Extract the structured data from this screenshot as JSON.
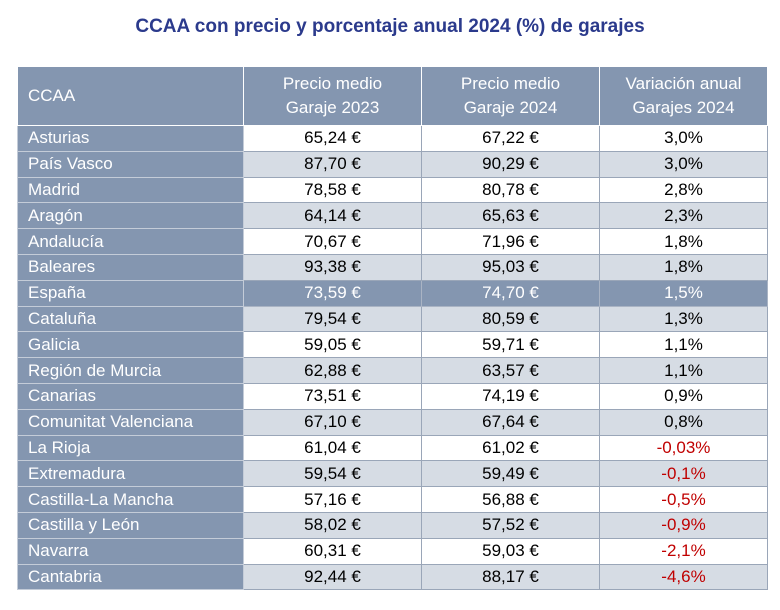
{
  "title": "CCAA con precio y porcentaje anual 2024 (%) de garajes",
  "header": {
    "col0": "CCAA",
    "col1_line1": "Precio medio",
    "col1_line2": "Garaje 2023",
    "col2_line1": "Precio medio",
    "col2_line2": "Garaje 2024",
    "col3_line1": "Variación anual",
    "col3_line2": "Garajes 2024"
  },
  "colors": {
    "header_bg": "#8496b0",
    "stripe_bg": "#d6dce4",
    "title": "#2b3a8c",
    "negative": "#c00000"
  },
  "rows": [
    {
      "ccaa": "Asturias",
      "p2023": "65,24 €",
      "p2024": "67,22 €",
      "var": "3,0%",
      "neg": false,
      "highlight": false
    },
    {
      "ccaa": "País Vasco",
      "p2023": "87,70 €",
      "p2024": "90,29 €",
      "var": "3,0%",
      "neg": false,
      "highlight": false
    },
    {
      "ccaa": "Madrid",
      "p2023": "78,58 €",
      "p2024": "80,78 €",
      "var": "2,8%",
      "neg": false,
      "highlight": false
    },
    {
      "ccaa": "Aragón",
      "p2023": "64,14 €",
      "p2024": "65,63 €",
      "var": "2,3%",
      "neg": false,
      "highlight": false
    },
    {
      "ccaa": "Andalucía",
      "p2023": "70,67 €",
      "p2024": "71,96 €",
      "var": "1,8%",
      "neg": false,
      "highlight": false
    },
    {
      "ccaa": "Baleares",
      "p2023": "93,38 €",
      "p2024": "95,03 €",
      "var": "1,8%",
      "neg": false,
      "highlight": false
    },
    {
      "ccaa": "España",
      "p2023": "73,59 €",
      "p2024": "74,70 €",
      "var": "1,5%",
      "neg": false,
      "highlight": true
    },
    {
      "ccaa": "Cataluña",
      "p2023": "79,54 €",
      "p2024": "80,59 €",
      "var": "1,3%",
      "neg": false,
      "highlight": false
    },
    {
      "ccaa": "Galicia",
      "p2023": "59,05 €",
      "p2024": "59,71 €",
      "var": "1,1%",
      "neg": false,
      "highlight": false
    },
    {
      "ccaa": "Región de Murcia",
      "p2023": "62,88 €",
      "p2024": "63,57 €",
      "var": "1,1%",
      "neg": false,
      "highlight": false
    },
    {
      "ccaa": "Canarias",
      "p2023": "73,51 €",
      "p2024": "74,19 €",
      "var": "0,9%",
      "neg": false,
      "highlight": false
    },
    {
      "ccaa": "Comunitat Valenciana",
      "p2023": "67,10 €",
      "p2024": "67,64 €",
      "var": "0,8%",
      "neg": false,
      "highlight": false
    },
    {
      "ccaa": "La Rioja",
      "p2023": "61,04 €",
      "p2024": "61,02 €",
      "var": "-0,03%",
      "neg": true,
      "highlight": false
    },
    {
      "ccaa": "Extremadura",
      "p2023": "59,54 €",
      "p2024": "59,49 €",
      "var": "-0,1%",
      "neg": true,
      "highlight": false
    },
    {
      "ccaa": "Castilla-La Mancha",
      "p2023": "57,16 €",
      "p2024": "56,88 €",
      "var": "-0,5%",
      "neg": true,
      "highlight": false
    },
    {
      "ccaa": "Castilla y León",
      "p2023": "58,02 €",
      "p2024": "57,52 €",
      "var": "-0,9%",
      "neg": true,
      "highlight": false
    },
    {
      "ccaa": "Navarra",
      "p2023": "60,31 €",
      "p2024": "59,03 €",
      "var": "-2,1%",
      "neg": true,
      "highlight": false
    },
    {
      "ccaa": "Cantabria",
      "p2023": "92,44 €",
      "p2024": "88,17 €",
      "var": "-4,6%",
      "neg": true,
      "highlight": false
    }
  ]
}
